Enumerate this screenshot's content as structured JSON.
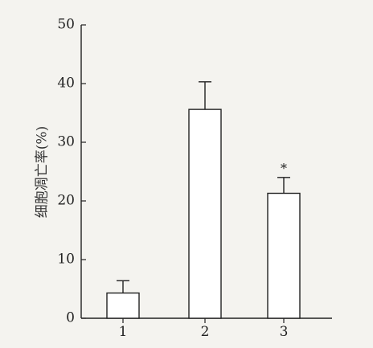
{
  "chart_data": {
    "type": "bar",
    "ylabel": "细胞凋亡率(%)",
    "xlabel": "",
    "categories": [
      "1",
      "2",
      "3"
    ],
    "values": [
      4.3,
      35.6,
      21.3
    ],
    "error_upper": [
      6.4,
      40.3,
      24.0
    ],
    "annotations": [
      "",
      "",
      "*"
    ],
    "ylim": [
      0,
      50
    ],
    "yticks": [
      0,
      10,
      20,
      30,
      40,
      50
    ],
    "grid": false,
    "legend": "none"
  },
  "colors": {
    "background": "#f4f3ef",
    "bar_fill": "#ffffff",
    "stroke": "#222222"
  }
}
